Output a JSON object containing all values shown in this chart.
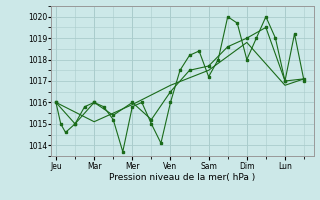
{
  "background_color": "#cce8e8",
  "grid_color": "#aacccc",
  "line_color": "#1a6b1a",
  "xlabel": "Pression niveau de la mer( hPa )",
  "ylim": [
    1013.5,
    1020.5
  ],
  "yticks": [
    1014,
    1015,
    1016,
    1017,
    1018,
    1019,
    1020
  ],
  "day_labels": [
    "Jeu",
    "Mar",
    "Mer",
    "Ven",
    "Sam",
    "Dim",
    "Lun"
  ],
  "day_positions": [
    0,
    16,
    32,
    48,
    64,
    80,
    96
  ],
  "xlim": [
    -2,
    108
  ],
  "series1_x": [
    0,
    2,
    4,
    8,
    12,
    16,
    20,
    24,
    28,
    32,
    36,
    40,
    44,
    48,
    52,
    56,
    60,
    64,
    68,
    72,
    76,
    80,
    84,
    88,
    92,
    96,
    100,
    104
  ],
  "series1_y": [
    1016.0,
    1015.0,
    1014.6,
    1015.0,
    1015.8,
    1016.0,
    1015.8,
    1015.2,
    1013.7,
    1015.8,
    1016.0,
    1015.0,
    1014.1,
    1016.0,
    1017.5,
    1018.2,
    1018.4,
    1017.2,
    1018.0,
    1020.0,
    1019.7,
    1018.0,
    1019.0,
    1020.0,
    1019.0,
    1017.0,
    1019.2,
    1017.0
  ],
  "series2_x": [
    0,
    8,
    16,
    24,
    32,
    40,
    48,
    56,
    64,
    72,
    80,
    88,
    96,
    104
  ],
  "series2_y": [
    1016.0,
    1015.0,
    1016.0,
    1015.4,
    1016.0,
    1015.2,
    1016.5,
    1017.5,
    1017.7,
    1018.6,
    1019.0,
    1019.5,
    1017.0,
    1017.1
  ],
  "series3_x": [
    0,
    16,
    32,
    48,
    64,
    80,
    96,
    104
  ],
  "series3_y": [
    1016.0,
    1015.1,
    1015.9,
    1016.8,
    1017.5,
    1018.8,
    1016.8,
    1017.1
  ],
  "figsize": [
    3.2,
    2.0
  ],
  "dpi": 100
}
